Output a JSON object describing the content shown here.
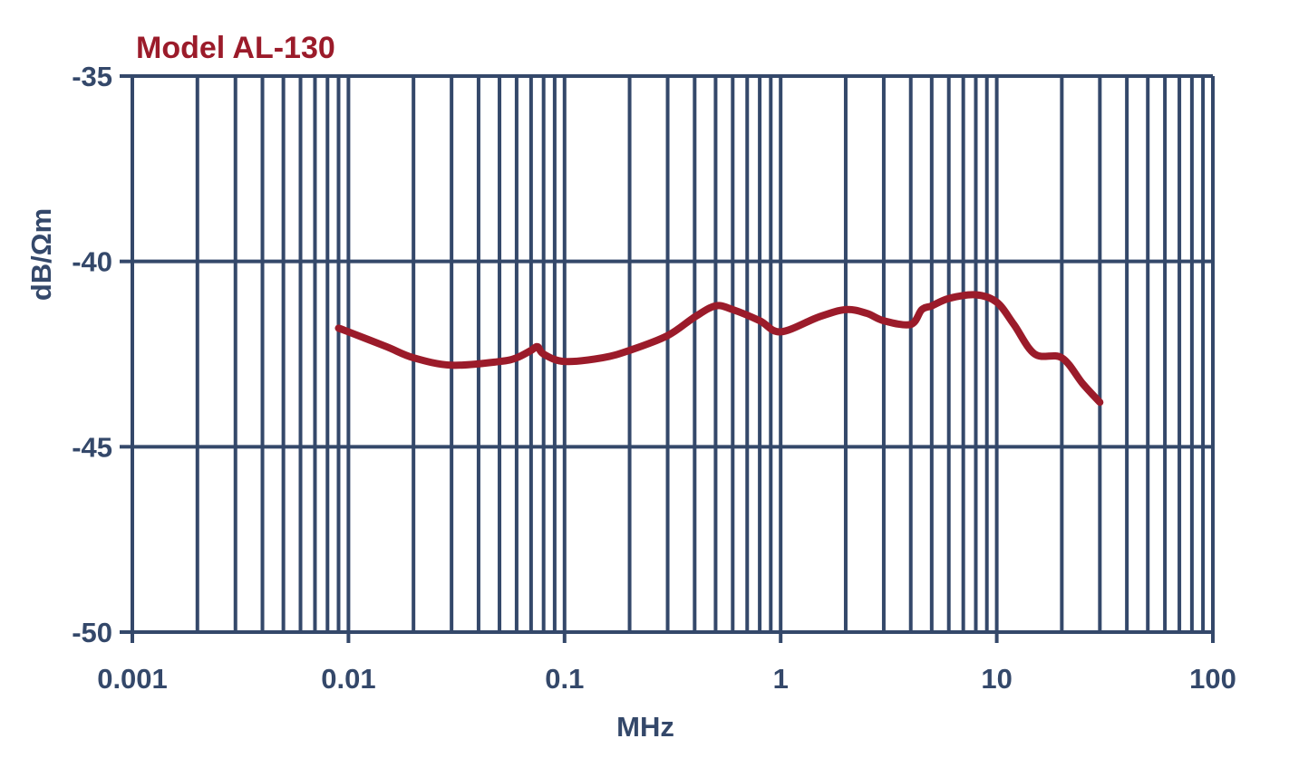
{
  "chart_data": {
    "type": "line",
    "title": "Model AL-130",
    "xlabel": "MHz",
    "ylabel": "dB/Ωm",
    "xscale": "log",
    "xlim": [
      0.001,
      100
    ],
    "ylim": [
      -50,
      -35
    ],
    "xticks": [
      0.001,
      0.01,
      0.1,
      1,
      10,
      100
    ],
    "xtick_labels": [
      "0.001",
      "0.01",
      "0.1",
      "1",
      "10",
      "100"
    ],
    "yticks": [
      -35,
      -40,
      -45,
      -50
    ],
    "ytick_labels": [
      "-35",
      "-40",
      "-45",
      "-50"
    ],
    "grid": true,
    "colors": {
      "series": "#9b1b2a",
      "axes": "#34486a"
    },
    "series": [
      {
        "x": [
          0.009,
          0.01,
          0.015,
          0.02,
          0.03,
          0.05,
          0.06,
          0.07,
          0.075,
          0.08,
          0.1,
          0.15,
          0.2,
          0.3,
          0.4,
          0.5,
          0.6,
          0.8,
          1.0,
          1.5,
          2.0,
          2.5,
          3.0,
          4.0,
          4.5,
          5.0,
          6.0,
          8.0,
          10.0,
          12.0,
          15.0,
          20.0,
          25.0,
          30.0
        ],
        "values": [
          -41.8,
          -41.9,
          -42.3,
          -42.6,
          -42.8,
          -42.7,
          -42.6,
          -42.4,
          -42.3,
          -42.5,
          -42.7,
          -42.6,
          -42.4,
          -42.0,
          -41.5,
          -41.2,
          -41.3,
          -41.6,
          -41.9,
          -41.5,
          -41.3,
          -41.4,
          -41.6,
          -41.7,
          -41.3,
          -41.2,
          -41.0,
          -40.9,
          -41.1,
          -41.7,
          -42.5,
          -42.6,
          -43.3,
          -43.8
        ]
      }
    ]
  }
}
